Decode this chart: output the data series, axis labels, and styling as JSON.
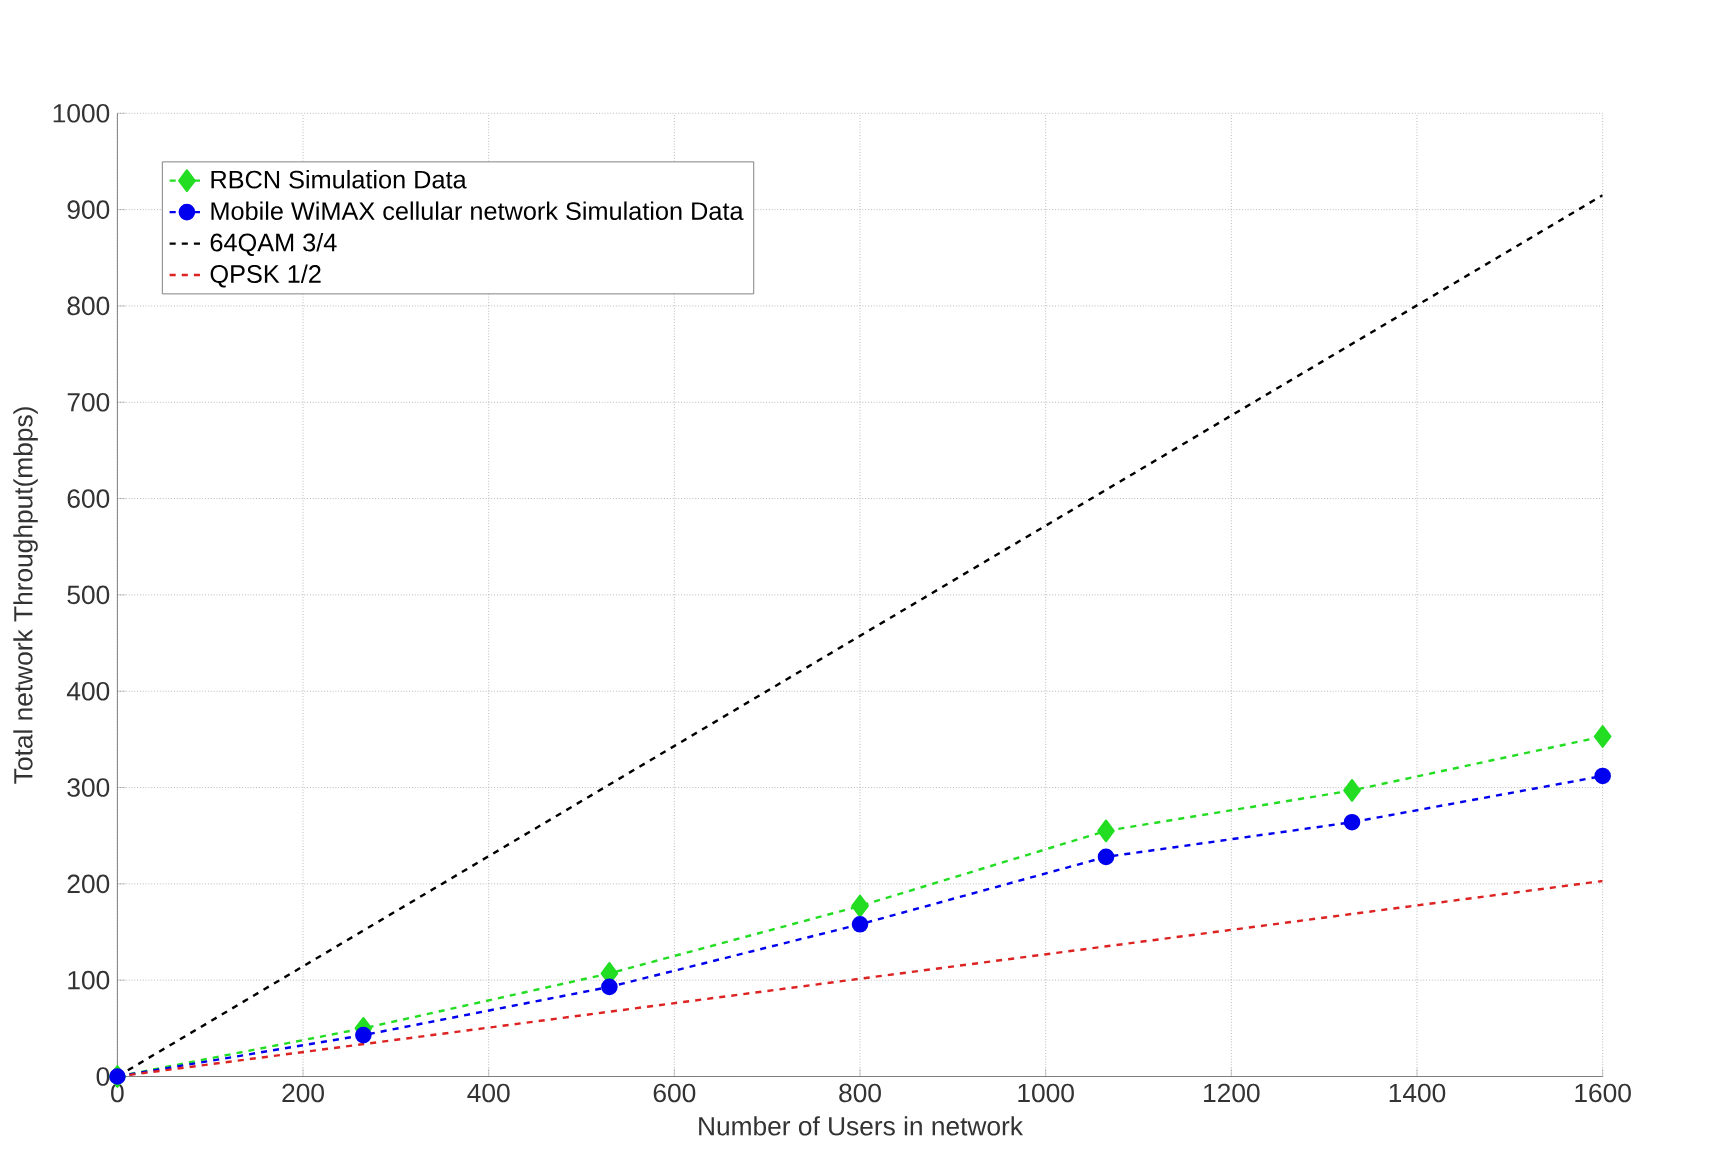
{
  "chart_data": {
    "type": "line",
    "xlabel": "Number of Users in network",
    "ylabel": "Total network Throughput(mbps)",
    "xlim": [
      0,
      1600
    ],
    "ylim": [
      0,
      1000
    ],
    "xticks": [
      0,
      200,
      400,
      600,
      800,
      1000,
      1200,
      1400,
      1600
    ],
    "yticks": [
      0,
      100,
      200,
      300,
      400,
      500,
      600,
      700,
      800,
      900,
      1000
    ],
    "grid": true,
    "legend": "top left",
    "line_style": "dashed",
    "series": [
      {
        "name": "RBCN Simulation Data",
        "color": "#22dd22",
        "marker": "diamond",
        "x": [
          0,
          265,
          530,
          800,
          1065,
          1330,
          1600
        ],
        "values": [
          0,
          50,
          107,
          177,
          255,
          297,
          353
        ]
      },
      {
        "name": "Mobile WiMAX cellular network Simulation Data",
        "color": "#0000ee",
        "marker": "circle",
        "x": [
          0,
          265,
          530,
          800,
          1065,
          1330,
          1600
        ],
        "values": [
          0,
          43,
          93,
          158,
          228,
          264,
          312
        ]
      },
      {
        "name": "64QAM 3/4",
        "color": "#000000",
        "marker": "none",
        "x": [
          0,
          1600
        ],
        "values": [
          0,
          915
        ]
      },
      {
        "name": "QPSK 1/2",
        "color": "#dd2222",
        "marker": "none",
        "x": [
          0,
          1600
        ],
        "values": [
          0,
          203
        ]
      }
    ]
  }
}
